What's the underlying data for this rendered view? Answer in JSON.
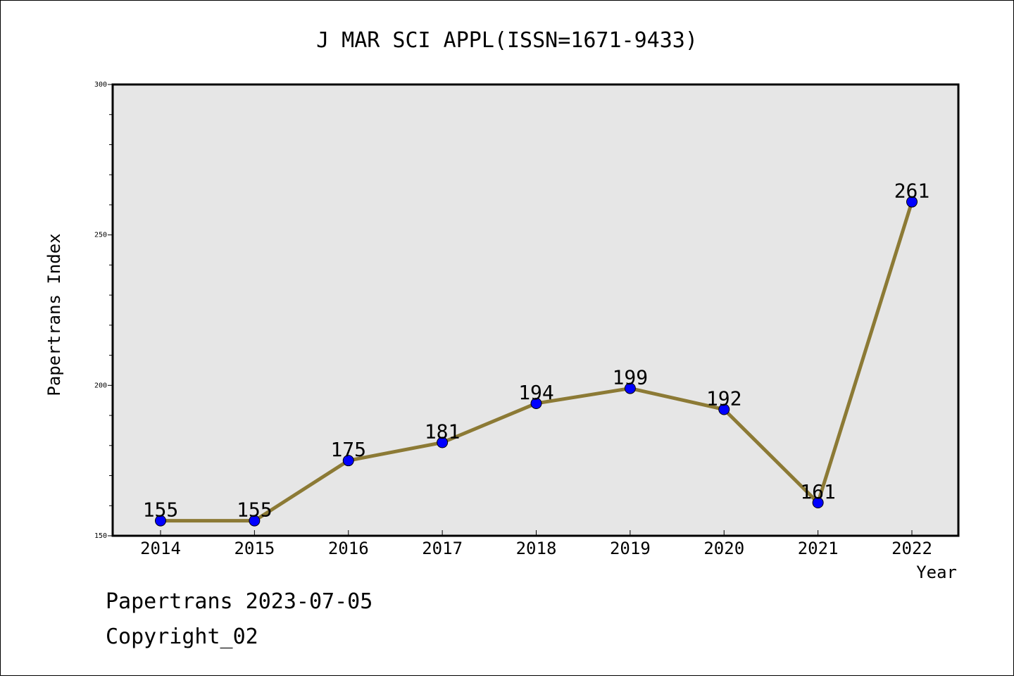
{
  "chart_data": {
    "type": "line",
    "title": "J MAR SCI APPL(ISSN=1671-9433)",
    "xlabel": "Year",
    "ylabel": "Papertrans Index",
    "categories": [
      "2014",
      "2015",
      "2016",
      "2017",
      "2018",
      "2019",
      "2020",
      "2021",
      "2022"
    ],
    "series": [
      {
        "values": [
          155,
          155,
          175,
          181,
          194,
          199,
          192,
          161,
          261
        ]
      }
    ],
    "ylim": [
      150,
      300
    ],
    "yticks": [
      "150",
      "200",
      "250",
      "300"
    ],
    "grid": false,
    "line_color": "#8c7a35",
    "marker_color": "#0000ff",
    "plot_background": "#e6e6e6"
  },
  "footer": {
    "line1": "Papertrans 2023-07-05",
    "line2": "Copyright_02"
  }
}
